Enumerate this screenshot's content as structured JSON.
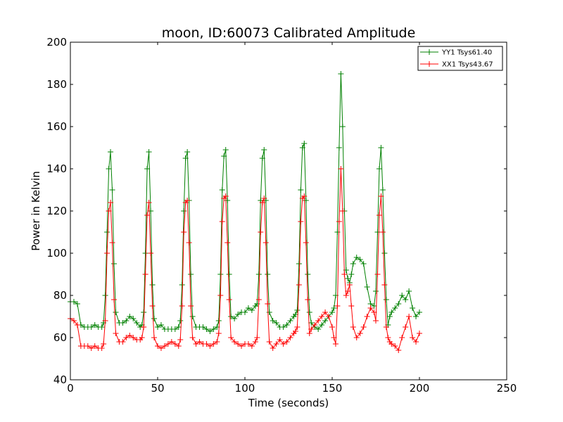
{
  "chart_data": {
    "type": "line",
    "title": "moon, ID:60073 Calibrated Amplitude",
    "xlabel": "Time (seconds)",
    "ylabel": "Power in Kelvin",
    "xlim": [
      0,
      250
    ],
    "ylim": [
      40,
      200
    ],
    "xticks": [
      0,
      50,
      100,
      150,
      200,
      250
    ],
    "yticks": [
      40,
      60,
      80,
      100,
      120,
      140,
      160,
      180,
      200
    ],
    "grid": false,
    "legend_position": "top-right",
    "marker": "+",
    "series": [
      {
        "name": "YY1 Tsys61.40",
        "color": "#008000",
        "x": [
          0,
          2,
          4,
          6,
          8,
          10,
          12,
          14,
          16,
          18,
          19,
          20,
          21,
          22,
          23,
          24,
          25,
          26,
          28,
          30,
          32,
          34,
          36,
          38,
          40,
          41,
          42,
          43,
          44,
          45,
          46,
          47,
          48,
          50,
          52,
          54,
          56,
          58,
          60,
          62,
          63,
          64,
          65,
          66,
          67,
          68,
          69,
          70,
          72,
          74,
          76,
          78,
          80,
          82,
          84,
          85,
          86,
          87,
          88,
          89,
          90,
          91,
          92,
          94,
          96,
          98,
          100,
          102,
          104,
          106,
          107,
          108,
          109,
          110,
          111,
          112,
          113,
          114,
          116,
          118,
          120,
          122,
          124,
          126,
          128,
          129,
          130,
          131,
          132,
          133,
          134,
          135,
          136,
          137,
          138,
          140,
          142,
          144,
          146,
          148,
          150,
          151,
          152,
          153,
          154,
          155,
          156,
          157,
          158,
          159,
          160,
          161,
          162,
          164,
          166,
          168,
          170,
          172,
          174,
          175,
          176,
          177,
          178,
          179,
          180,
          181,
          182,
          183,
          184,
          186,
          188,
          190,
          192,
          194,
          196,
          198,
          200
        ],
        "values": [
          77,
          77,
          76,
          66,
          65,
          65,
          65,
          66,
          65,
          65,
          67,
          80,
          110,
          140,
          148,
          130,
          95,
          72,
          67,
          67,
          68,
          70,
          69,
          67,
          65,
          66,
          72,
          100,
          140,
          148,
          120,
          85,
          69,
          65,
          66,
          64,
          64,
          64,
          64,
          65,
          68,
          85,
          120,
          145,
          148,
          125,
          90,
          70,
          65,
          65,
          65,
          64,
          63,
          64,
          65,
          68,
          90,
          130,
          146,
          149,
          125,
          90,
          70,
          69,
          71,
          72,
          72,
          74,
          73,
          75,
          76,
          90,
          125,
          145,
          149,
          125,
          90,
          72,
          68,
          67,
          65,
          65,
          66,
          68,
          70,
          71,
          73,
          95,
          130,
          150,
          152,
          125,
          90,
          72,
          67,
          65,
          64,
          66,
          68,
          70,
          72,
          74,
          80,
          110,
          150,
          185,
          160,
          120,
          92,
          88,
          86,
          90,
          95,
          98,
          97,
          95,
          84,
          76,
          75,
          82,
          110,
          140,
          150,
          130,
          100,
          78,
          66,
          70,
          72,
          74,
          76,
          80,
          78,
          82,
          74,
          70,
          72
        ]
      },
      {
        "name": "XX1 Tsys43.67",
        "color": "#ff0000",
        "x": [
          0,
          2,
          4,
          6,
          8,
          10,
          12,
          14,
          16,
          18,
          19,
          20,
          21,
          22,
          23,
          24,
          25,
          26,
          28,
          30,
          32,
          34,
          36,
          38,
          40,
          41,
          42,
          43,
          44,
          45,
          46,
          47,
          48,
          50,
          52,
          54,
          56,
          58,
          60,
          62,
          63,
          64,
          65,
          66,
          67,
          68,
          69,
          70,
          72,
          74,
          76,
          78,
          80,
          82,
          84,
          85,
          86,
          87,
          88,
          89,
          90,
          91,
          92,
          94,
          96,
          98,
          100,
          102,
          104,
          106,
          107,
          108,
          109,
          110,
          111,
          112,
          113,
          114,
          116,
          118,
          120,
          122,
          124,
          126,
          128,
          129,
          130,
          131,
          132,
          133,
          134,
          135,
          136,
          137,
          138,
          140,
          142,
          144,
          146,
          148,
          150,
          151,
          152,
          153,
          154,
          155,
          156,
          157,
          158,
          159,
          160,
          161,
          162,
          164,
          166,
          168,
          170,
          172,
          174,
          175,
          176,
          177,
          178,
          179,
          180,
          181,
          182,
          183,
          184,
          186,
          188,
          190,
          192,
          194,
          196,
          198,
          200
        ],
        "values": [
          69,
          68,
          66,
          56,
          56,
          56,
          55,
          56,
          55,
          55,
          57,
          68,
          100,
          120,
          124,
          105,
          78,
          62,
          58,
          58,
          60,
          61,
          60,
          59,
          59,
          60,
          65,
          90,
          118,
          124,
          100,
          75,
          60,
          56,
          55,
          56,
          57,
          58,
          57,
          56,
          59,
          75,
          110,
          124,
          125,
          105,
          75,
          60,
          57,
          58,
          57,
          57,
          56,
          57,
          58,
          62,
          80,
          115,
          126,
          127,
          105,
          78,
          60,
          58,
          57,
          56,
          57,
          57,
          56,
          58,
          60,
          78,
          110,
          124,
          126,
          105,
          76,
          58,
          55,
          57,
          59,
          57,
          58,
          60,
          62,
          63,
          65,
          85,
          115,
          126,
          127,
          105,
          78,
          62,
          64,
          66,
          68,
          70,
          72,
          70,
          65,
          60,
          57,
          75,
          115,
          140,
          120,
          90,
          80,
          82,
          85,
          75,
          65,
          60,
          62,
          65,
          70,
          74,
          72,
          68,
          90,
          118,
          127,
          110,
          85,
          65,
          60,
          58,
          57,
          56,
          54,
          60,
          65,
          70,
          60,
          58,
          62
        ]
      }
    ]
  }
}
